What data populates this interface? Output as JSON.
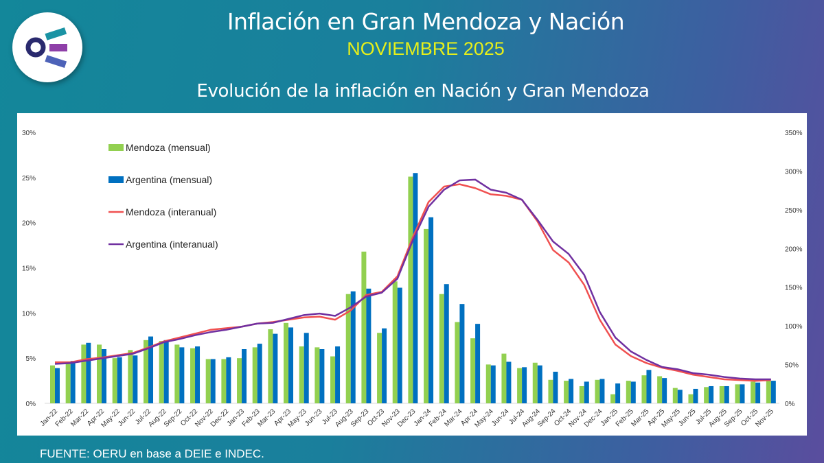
{
  "header": {
    "title": "Inflación en Gran Mendoza y Nación",
    "subtitle": "NOVIEMBRE 2025"
  },
  "section_title": "Evolución de la inflación en Nación y Gran Mendoza",
  "source": "FUENTE: OERU en base a DEIE e INDEC.",
  "colors": {
    "mendoza_monthly": "#92d050",
    "argentina_monthly": "#0070c0",
    "mendoza_yoy": "#f05050",
    "argentina_yoy": "#7030a0"
  },
  "chart_data": {
    "type": "bar+line",
    "title": "",
    "categories": [
      "Jan-22",
      "Feb-22",
      "Mar-22",
      "Apr-22",
      "May-22",
      "Jun-22",
      "Jul-22",
      "Aug-22",
      "Sep-22",
      "Oct-22",
      "Nov-22",
      "Dec-22",
      "Jan-23",
      "Feb-23",
      "Mar-23",
      "Apr-23",
      "May-23",
      "Jun-23",
      "Jul-23",
      "Aug-23",
      "Sep-23",
      "Oct-23",
      "Nov-23",
      "Dec-23",
      "Jan-24",
      "Feb-24",
      "Mar-24",
      "Apr-24",
      "May-24",
      "Jun-24",
      "Jul-24",
      "Aug-24",
      "Sep-24",
      "Oct-24",
      "Nov-24",
      "Dec-24",
      "Jan-25",
      "Feb-25",
      "Mar-25",
      "Apr-25",
      "May-25",
      "Jun-25",
      "Jul-25",
      "Aug-25",
      "Sep-25",
      "Oct-25",
      "Nov-25"
    ],
    "left_axis": {
      "ylim": [
        0,
        30
      ],
      "ticks": [
        "0%",
        "5%",
        "10%",
        "15%",
        "20%",
        "25%",
        "30%"
      ]
    },
    "right_axis": {
      "ylim": [
        0,
        350
      ],
      "ticks": [
        "0%",
        "50%",
        "100%",
        "150%",
        "200%",
        "250%",
        "300%",
        "350%"
      ]
    },
    "legend_position": "top-left",
    "grid": false,
    "series": [
      {
        "name": "Mendoza (mensual)",
        "type": "bar",
        "axis": "left",
        "values": [
          4.2,
          4.4,
          6.5,
          6.5,
          5.0,
          5.9,
          7.0,
          6.9,
          6.5,
          6.1,
          4.9,
          4.9,
          5.0,
          6.2,
          8.2,
          8.9,
          6.3,
          6.2,
          5.2,
          12.1,
          16.8,
          7.8,
          13.5,
          25.1,
          19.3,
          12.1,
          9.0,
          7.2,
          4.3,
          5.5,
          3.9,
          4.5,
          2.6,
          2.5,
          1.9,
          2.6,
          1.0,
          2.5,
          3.1,
          3.0,
          1.7,
          1.0,
          1.8,
          1.9,
          2.1,
          2.4,
          2.5
        ]
      },
      {
        "name": "Argentina (mensual)",
        "type": "bar",
        "axis": "left",
        "values": [
          3.9,
          4.7,
          6.7,
          6.0,
          5.1,
          5.3,
          7.4,
          7.0,
          6.2,
          6.3,
          4.9,
          5.1,
          6.0,
          6.6,
          7.7,
          8.4,
          7.8,
          6.0,
          6.3,
          12.4,
          12.7,
          8.3,
          12.8,
          25.5,
          20.6,
          13.2,
          11.0,
          8.8,
          4.2,
          4.6,
          4.0,
          4.2,
          3.5,
          2.7,
          2.4,
          2.7,
          2.2,
          2.4,
          3.7,
          2.8,
          1.5,
          1.6,
          1.9,
          1.9,
          2.1,
          2.3,
          2.5
        ]
      },
      {
        "name": "Mendoza (interanual)",
        "type": "line",
        "axis": "right",
        "values": [
          53,
          53,
          57,
          59,
          62,
          65,
          72,
          80,
          85,
          90,
          95,
          97,
          99,
          103,
          105,
          108,
          111,
          112,
          108,
          120,
          140,
          144,
          164,
          215,
          260,
          280,
          283,
          278,
          270,
          268,
          263,
          235,
          198,
          182,
          153,
          108,
          76,
          61,
          52,
          46,
          42,
          37,
          34,
          31,
          30,
          29,
          30
        ]
      },
      {
        "name": "Argentina (interanual)",
        "type": "line",
        "axis": "right",
        "values": [
          51,
          52,
          55,
          58,
          61,
          64,
          71,
          79,
          83,
          88,
          92,
          95,
          99,
          103,
          104,
          109,
          114,
          116,
          113,
          124,
          138,
          143,
          161,
          211,
          254,
          276,
          288,
          289,
          276,
          272,
          263,
          237,
          209,
          193,
          166,
          118,
          85,
          67,
          56,
          47,
          44,
          39,
          37,
          34,
          32,
          31,
          31
        ]
      }
    ]
  }
}
